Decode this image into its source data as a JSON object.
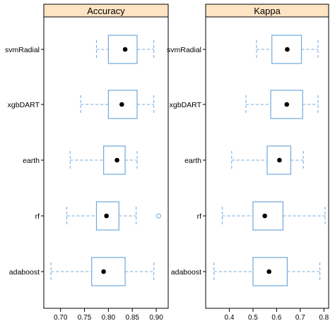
{
  "chart_data": {
    "type": "boxplot",
    "categories": [
      "svmRadial",
      "xgbDART",
      "earth",
      "rf",
      "adaboost"
    ],
    "colors": {
      "box": "#6fa8dc",
      "strip": "#ffe4c4",
      "median": "#000000",
      "frame": "#000000"
    },
    "panels": [
      {
        "title": "Accuracy",
        "xlim": [
          0.665,
          0.925
        ],
        "ticks": [
          0.7,
          0.75,
          0.8,
          0.85,
          0.9
        ],
        "tick_labels": [
          "0.70",
          "0.75",
          "0.80",
          "0.85",
          "0.90"
        ],
        "boxes": [
          {
            "category": "svmRadial",
            "whisker_low": 0.775,
            "q1": 0.8,
            "median": 0.835,
            "q3": 0.86,
            "whisker_high": 0.895,
            "outliers": []
          },
          {
            "category": "xgbDART",
            "whisker_low": 0.742,
            "q1": 0.8,
            "median": 0.828,
            "q3": 0.86,
            "whisker_high": 0.895,
            "outliers": []
          },
          {
            "category": "earth",
            "whisker_low": 0.72,
            "q1": 0.79,
            "median": 0.818,
            "q3": 0.835,
            "whisker_high": 0.86,
            "outliers": []
          },
          {
            "category": "rf",
            "whisker_low": 0.713,
            "q1": 0.775,
            "median": 0.796,
            "q3": 0.822,
            "whisker_high": 0.858,
            "outliers": [
              0.905
            ]
          },
          {
            "category": "adaboost",
            "whisker_low": 0.68,
            "q1": 0.765,
            "median": 0.79,
            "q3": 0.835,
            "whisker_high": 0.895,
            "outliers": []
          }
        ]
      },
      {
        "title": "Kappa",
        "xlim": [
          0.3,
          0.82
        ],
        "ticks": [
          0.4,
          0.5,
          0.6,
          0.7,
          0.8
        ],
        "tick_labels": [
          "0.4",
          "0.5",
          "0.6",
          "0.7",
          "0.8"
        ],
        "boxes": [
          {
            "category": "svmRadial",
            "whisker_low": 0.515,
            "q1": 0.58,
            "median": 0.645,
            "q3": 0.705,
            "whisker_high": 0.775,
            "outliers": []
          },
          {
            "category": "xgbDART",
            "whisker_low": 0.47,
            "q1": 0.575,
            "median": 0.643,
            "q3": 0.71,
            "whisker_high": 0.775,
            "outliers": []
          },
          {
            "category": "earth",
            "whisker_low": 0.41,
            "q1": 0.56,
            "median": 0.612,
            "q3": 0.66,
            "whisker_high": 0.713,
            "outliers": []
          },
          {
            "category": "rf",
            "whisker_low": 0.37,
            "q1": 0.5,
            "median": 0.55,
            "q3": 0.627,
            "whisker_high": 0.805,
            "outliers": []
          },
          {
            "category": "adaboost",
            "whisker_low": 0.335,
            "q1": 0.5,
            "median": 0.568,
            "q3": 0.645,
            "whisker_high": 0.783,
            "outliers": []
          }
        ]
      }
    ]
  }
}
